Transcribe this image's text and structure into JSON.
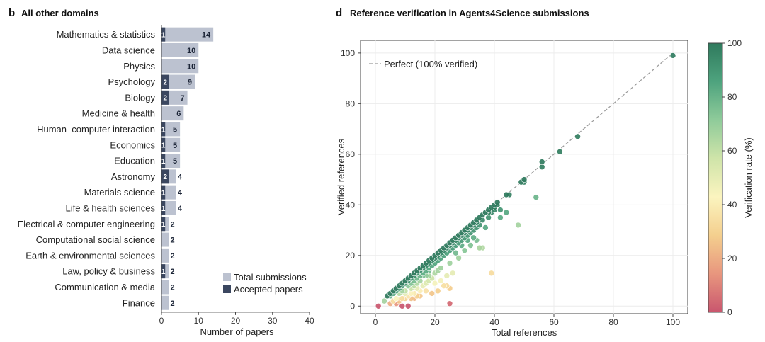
{
  "panel_b": {
    "letter": "b",
    "title": "All other domains",
    "legend": [
      {
        "label": "Total submissions",
        "color": "#bcc2d0"
      },
      {
        "label": "Accepted papers",
        "color": "#3b4760"
      }
    ]
  },
  "panel_d": {
    "letter": "d",
    "title": "Reference verification in Agents4Science submissions",
    "reference_line_label": "Perfect (100% verified)",
    "colorbar_label": "Verification rate (%)",
    "colorbar_ticks": [
      0,
      20,
      40,
      60,
      80,
      100
    ],
    "colormap": [
      "#c9566e",
      "#e8967e",
      "#f4cf8e",
      "#fbf4bf",
      "#cfe4a9",
      "#8fcb9a",
      "#4ea37e",
      "#2f7a5d"
    ]
  },
  "chart_data": [
    {
      "type": "bar",
      "orientation": "horizontal",
      "title": "All other domains",
      "xlabel": "Number of papers",
      "ylabel": "",
      "xlim": [
        0,
        40
      ],
      "xticks": [
        0,
        10,
        20,
        30,
        40
      ],
      "categories": [
        "Mathematics & statistics",
        "Data science",
        "Physics",
        "Psychology",
        "Biology",
        "Medicine & health",
        "Human–computer interaction",
        "Economics",
        "Education",
        "Astronomy",
        "Materials science",
        "Life & health sciences",
        "Electrical & computer engineering",
        "Computational social science",
        "Earth & environmental sciences",
        "Law, policy & business",
        "Communication & media",
        "Finance"
      ],
      "series": [
        {
          "name": "Total submissions",
          "values": [
            14,
            10,
            10,
            9,
            7,
            6,
            5,
            5,
            5,
            4,
            4,
            4,
            2,
            2,
            2,
            2,
            2,
            2
          ]
        },
        {
          "name": "Accepted papers",
          "values": [
            1,
            0,
            0,
            2,
            2,
            0,
            1,
            1,
            1,
            2,
            1,
            1,
            1,
            0,
            0,
            1,
            0,
            0
          ]
        }
      ],
      "accepted_labels": [
        "1",
        "",
        "",
        "2",
        "2",
        "",
        "1",
        "1",
        "1",
        "2",
        "1",
        "1",
        "1",
        "",
        "",
        "1",
        "",
        ""
      ],
      "total_labels": [
        "14",
        "10",
        "10",
        "9",
        "7",
        "6",
        "5",
        "5",
        "5",
        "4",
        "4",
        "4",
        "2",
        "2",
        "2",
        "2",
        "2",
        "2"
      ]
    },
    {
      "type": "scatter",
      "title": "Reference verification in Agents4Science submissions",
      "xlabel": "Total references",
      "ylabel": "Verified references",
      "xlim": [
        -5,
        105
      ],
      "ylim": [
        -3,
        105
      ],
      "xticks": [
        0,
        20,
        40,
        60,
        80,
        100
      ],
      "yticks": [
        0,
        20,
        40,
        60,
        80,
        100
      ],
      "grid": true,
      "color_by": "verification rate (%)",
      "color_range": [
        0,
        100
      ],
      "reference_line": {
        "name": "Perfect (100% verified)",
        "from": [
          3,
          3
        ],
        "to": [
          100,
          100
        ]
      },
      "points": [
        [
          1,
          0
        ],
        [
          11,
          0
        ],
        [
          25,
          1
        ],
        [
          4,
          4
        ],
        [
          5,
          4
        ],
        [
          5,
          5
        ],
        [
          6,
          5
        ],
        [
          6,
          6
        ],
        [
          7,
          6
        ],
        [
          7,
          7
        ],
        [
          8,
          7
        ],
        [
          8,
          8
        ],
        [
          9,
          8
        ],
        [
          9,
          9
        ],
        [
          10,
          9
        ],
        [
          10,
          10
        ],
        [
          11,
          10
        ],
        [
          11,
          11
        ],
        [
          12,
          11
        ],
        [
          12,
          12
        ],
        [
          13,
          12
        ],
        [
          13,
          13
        ],
        [
          14,
          13
        ],
        [
          14,
          14
        ],
        [
          15,
          14
        ],
        [
          15,
          15
        ],
        [
          16,
          15
        ],
        [
          16,
          16
        ],
        [
          17,
          16
        ],
        [
          17,
          17
        ],
        [
          18,
          17
        ],
        [
          18,
          18
        ],
        [
          19,
          18
        ],
        [
          19,
          19
        ],
        [
          20,
          19
        ],
        [
          20,
          20
        ],
        [
          21,
          20
        ],
        [
          21,
          21
        ],
        [
          22,
          21
        ],
        [
          22,
          22
        ],
        [
          23,
          22
        ],
        [
          23,
          23
        ],
        [
          24,
          23
        ],
        [
          24,
          24
        ],
        [
          25,
          24
        ],
        [
          25,
          25
        ],
        [
          26,
          25
        ],
        [
          26,
          26
        ],
        [
          27,
          26
        ],
        [
          27,
          27
        ],
        [
          28,
          27
        ],
        [
          28,
          28
        ],
        [
          29,
          28
        ],
        [
          29,
          29
        ],
        [
          30,
          29
        ],
        [
          30,
          30
        ],
        [
          31,
          30
        ],
        [
          31,
          31
        ],
        [
          32,
          31
        ],
        [
          32,
          32
        ],
        [
          33,
          32
        ],
        [
          33,
          33
        ],
        [
          34,
          33
        ],
        [
          34,
          34
        ],
        [
          35,
          35
        ],
        [
          36,
          36
        ],
        [
          37,
          37
        ],
        [
          38,
          37
        ],
        [
          38,
          38
        ],
        [
          39,
          39
        ],
        [
          40,
          39
        ],
        [
          40,
          40
        ],
        [
          41,
          40
        ],
        [
          41,
          41
        ],
        [
          44,
          44
        ],
        [
          45,
          44
        ],
        [
          49,
          49
        ],
        [
          50,
          49
        ],
        [
          50,
          50
        ],
        [
          56,
          55
        ],
        [
          56,
          57
        ],
        [
          62,
          61
        ],
        [
          68,
          67
        ],
        [
          100,
          99
        ],
        [
          8,
          5
        ],
        [
          9,
          6
        ],
        [
          10,
          6
        ],
        [
          11,
          8
        ],
        [
          12,
          7
        ],
        [
          12,
          9
        ],
        [
          13,
          8
        ],
        [
          13,
          10
        ],
        [
          14,
          11
        ],
        [
          14,
          9
        ],
        [
          15,
          10
        ],
        [
          15,
          12
        ],
        [
          16,
          12
        ],
        [
          16,
          13
        ],
        [
          17,
          14
        ],
        [
          17,
          12
        ],
        [
          18,
          14
        ],
        [
          18,
          15
        ],
        [
          19,
          16
        ],
        [
          20,
          17
        ],
        [
          21,
          18
        ],
        [
          22,
          19
        ],
        [
          23,
          20
        ],
        [
          24,
          21
        ],
        [
          25,
          22
        ],
        [
          26,
          23
        ],
        [
          27,
          24
        ],
        [
          28,
          25
        ],
        [
          29,
          26
        ],
        [
          30,
          27
        ],
        [
          31,
          28
        ],
        [
          32,
          29
        ],
        [
          33,
          30
        ],
        [
          34,
          31
        ],
        [
          35,
          32
        ],
        [
          36,
          34
        ],
        [
          38,
          35
        ],
        [
          39,
          37
        ],
        [
          40,
          38
        ],
        [
          42,
          38
        ],
        [
          44,
          37
        ],
        [
          48,
          32
        ],
        [
          54,
          43
        ],
        [
          35,
          23
        ],
        [
          36,
          23
        ],
        [
          34,
          26
        ],
        [
          32,
          24
        ],
        [
          28,
          19
        ],
        [
          25,
          17
        ],
        [
          22,
          15
        ],
        [
          20,
          13
        ],
        [
          19,
          11
        ],
        [
          24,
          12
        ],
        [
          22,
          10
        ],
        [
          20,
          9
        ],
        [
          18,
          10
        ],
        [
          16,
          8
        ],
        [
          25,
          7
        ],
        [
          23,
          8
        ],
        [
          21,
          6
        ],
        [
          19,
          5
        ],
        [
          17,
          6
        ],
        [
          15,
          4
        ],
        [
          13,
          5
        ],
        [
          11,
          4
        ],
        [
          9,
          3
        ],
        [
          7,
          3
        ],
        [
          6,
          2
        ],
        [
          5,
          1
        ],
        [
          3,
          2
        ],
        [
          8,
          2
        ],
        [
          10,
          3
        ],
        [
          12,
          3
        ],
        [
          14,
          4
        ],
        [
          9,
          0
        ],
        [
          7,
          1
        ],
        [
          24,
          8
        ],
        [
          39,
          13
        ],
        [
          13,
          3
        ],
        [
          15,
          6
        ],
        [
          17,
          9
        ],
        [
          26,
          13
        ],
        [
          30,
          22
        ],
        [
          37,
          31
        ],
        [
          42,
          35
        ],
        [
          27,
          21
        ],
        [
          29,
          24
        ],
        [
          31,
          26
        ],
        [
          33,
          27
        ],
        [
          21,
          14
        ],
        [
          18,
          12
        ],
        [
          14,
          7
        ],
        [
          12,
          5
        ],
        [
          10,
          5
        ]
      ]
    }
  ]
}
